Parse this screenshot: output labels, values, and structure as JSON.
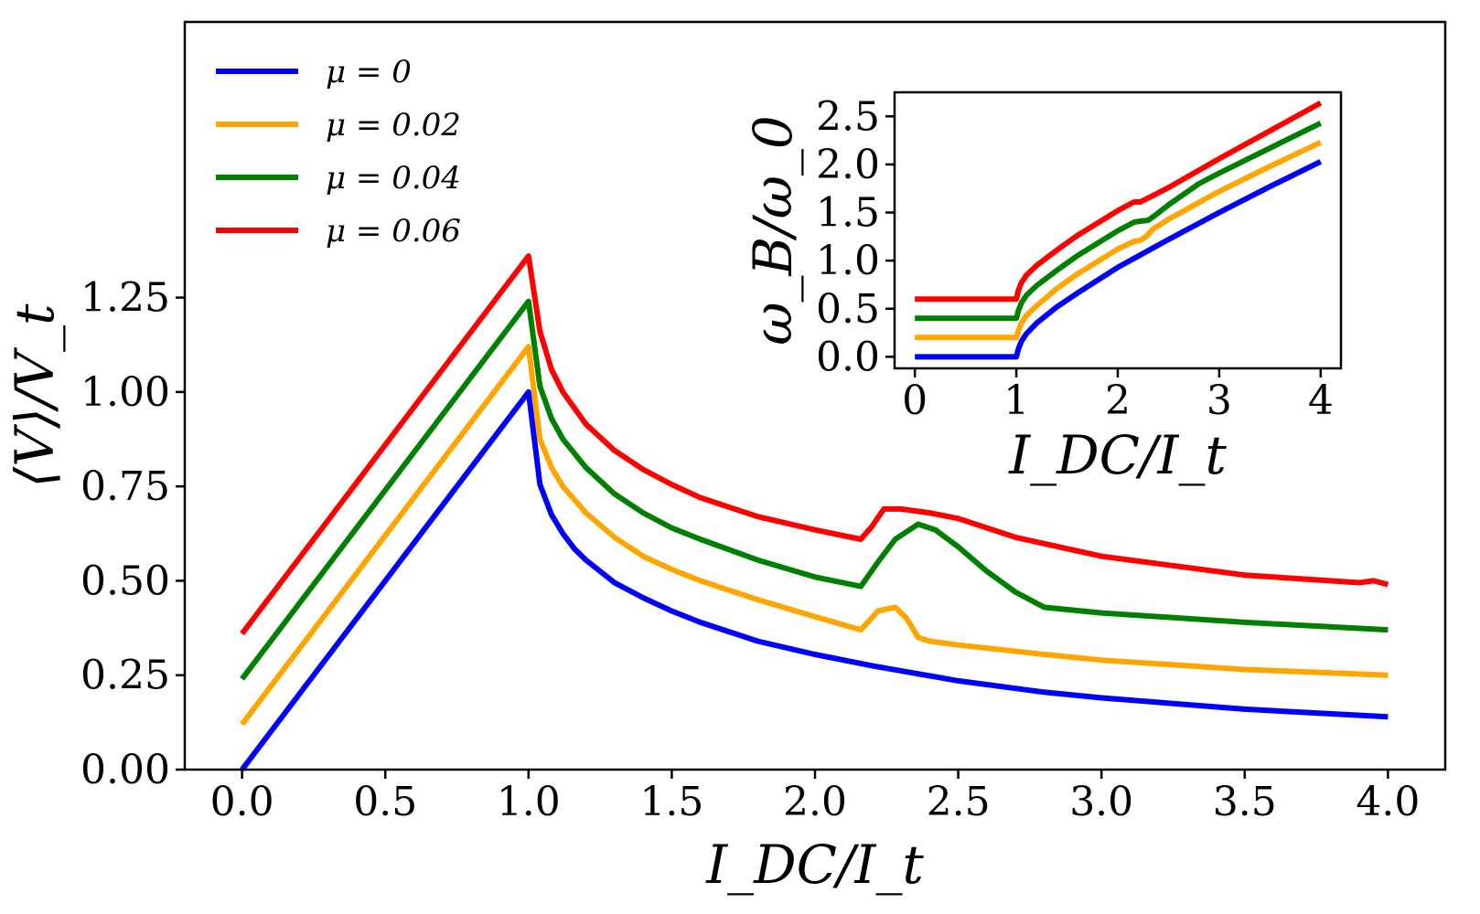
{
  "chart_data": [
    {
      "type": "line",
      "role": "main",
      "xlabel": "I_DC/I_t",
      "ylabel": "⟨V⟩/V_t",
      "xlim": [
        -0.2,
        4.2
      ],
      "ylim": [
        0.0,
        1.98
      ],
      "xticks": [
        0.0,
        0.5,
        1.0,
        1.5,
        2.0,
        2.5,
        3.0,
        3.5,
        4.0
      ],
      "xtick_labels": [
        "0.0",
        "0.5",
        "1.0",
        "1.5",
        "2.0",
        "2.5",
        "3.0",
        "3.5",
        "4.0"
      ],
      "yticks": [
        0.0,
        0.25,
        0.5,
        0.75,
        1.0,
        1.25
      ],
      "ytick_labels": [
        "0.00",
        "0.25",
        "0.50",
        "0.75",
        "1.00",
        "1.25"
      ],
      "legend_position": "top-left",
      "series": [
        {
          "name": "μ = 0",
          "color": "#0000ff",
          "x": [
            0.0,
            1.0,
            1.04,
            1.08,
            1.12,
            1.16,
            1.2,
            1.3,
            1.4,
            1.5,
            1.6,
            1.8,
            2.0,
            2.2,
            2.5,
            2.8,
            3.0,
            3.5,
            4.0
          ],
          "y": [
            0.0,
            1.0,
            0.755,
            0.675,
            0.625,
            0.585,
            0.555,
            0.495,
            0.455,
            0.42,
            0.39,
            0.34,
            0.305,
            0.275,
            0.235,
            0.205,
            0.19,
            0.16,
            0.14
          ]
        },
        {
          "name": "μ = 0.02",
          "color": "#ffa500",
          "x": [
            0.0,
            1.0,
            1.04,
            1.08,
            1.12,
            1.2,
            1.3,
            1.4,
            1.5,
            1.6,
            1.8,
            2.0,
            2.16,
            2.22,
            2.28,
            2.32,
            2.36,
            2.4,
            2.5,
            2.8,
            3.0,
            3.5,
            4.0
          ],
          "y": [
            0.12,
            1.12,
            0.875,
            0.8,
            0.75,
            0.68,
            0.615,
            0.565,
            0.53,
            0.5,
            0.45,
            0.405,
            0.37,
            0.42,
            0.43,
            0.4,
            0.35,
            0.34,
            0.33,
            0.305,
            0.29,
            0.265,
            0.25
          ]
        },
        {
          "name": "μ = 0.04",
          "color": "#008000",
          "x": [
            0.0,
            1.0,
            1.04,
            1.08,
            1.12,
            1.2,
            1.3,
            1.4,
            1.5,
            1.6,
            1.8,
            2.0,
            2.16,
            2.22,
            2.28,
            2.36,
            2.42,
            2.5,
            2.6,
            2.7,
            2.8,
            3.0,
            3.5,
            4.0
          ],
          "y": [
            0.24,
            1.24,
            1.015,
            0.93,
            0.875,
            0.8,
            0.73,
            0.68,
            0.64,
            0.61,
            0.555,
            0.51,
            0.485,
            0.55,
            0.61,
            0.65,
            0.635,
            0.59,
            0.525,
            0.47,
            0.43,
            0.415,
            0.39,
            0.37
          ]
        },
        {
          "name": "μ = 0.06",
          "color": "#ff0000",
          "x": [
            0.0,
            1.0,
            1.04,
            1.08,
            1.12,
            1.2,
            1.3,
            1.4,
            1.5,
            1.6,
            1.8,
            2.0,
            2.16,
            2.2,
            2.24,
            2.3,
            2.4,
            2.5,
            2.7,
            3.0,
            3.5,
            3.9,
            3.95,
            4.0
          ],
          "y": [
            0.36,
            1.36,
            1.16,
            1.06,
            1.0,
            0.915,
            0.845,
            0.795,
            0.755,
            0.72,
            0.67,
            0.635,
            0.61,
            0.645,
            0.69,
            0.69,
            0.68,
            0.665,
            0.615,
            0.565,
            0.515,
            0.495,
            0.5,
            0.49
          ]
        }
      ]
    },
    {
      "type": "line",
      "role": "inset",
      "xlabel": "I_DC/I_t",
      "ylabel": "ω_B/ω_0",
      "xlim": [
        -0.2,
        4.2
      ],
      "ylim": [
        -0.12,
        2.75
      ],
      "xticks": [
        0,
        1,
        2,
        3,
        4
      ],
      "xtick_labels": [
        "0",
        "1",
        "2",
        "3",
        "4"
      ],
      "yticks": [
        0.0,
        0.5,
        1.0,
        1.5,
        2.0,
        2.5
      ],
      "ytick_labels": [
        "0.0",
        "0.5",
        "1.0",
        "1.5",
        "2.0",
        "2.5"
      ],
      "series": [
        {
          "name": "μ = 0",
          "color": "#0000ff",
          "x": [
            0.0,
            1.0,
            1.02,
            1.05,
            1.1,
            1.2,
            1.4,
            1.6,
            2.0,
            2.5,
            3.0,
            3.5,
            4.0
          ],
          "y": [
            0.0,
            0.0,
            0.08,
            0.16,
            0.24,
            0.35,
            0.52,
            0.66,
            0.93,
            1.22,
            1.5,
            1.77,
            2.03
          ]
        },
        {
          "name": "μ = 0.02",
          "color": "#ffa500",
          "x": [
            0.0,
            1.0,
            1.02,
            1.05,
            1.1,
            1.2,
            1.4,
            1.6,
            2.0,
            2.16,
            2.22,
            2.28,
            2.35,
            2.5,
            3.0,
            3.5,
            4.0
          ],
          "y": [
            0.2,
            0.2,
            0.27,
            0.35,
            0.43,
            0.53,
            0.71,
            0.86,
            1.12,
            1.2,
            1.21,
            1.25,
            1.33,
            1.43,
            1.72,
            1.98,
            2.23
          ]
        },
        {
          "name": "μ = 0.04",
          "color": "#008000",
          "x": [
            0.0,
            1.0,
            1.02,
            1.05,
            1.1,
            1.2,
            1.4,
            1.6,
            2.0,
            2.16,
            2.22,
            2.3,
            2.38,
            2.5,
            2.8,
            3.0,
            3.5,
            4.0
          ],
          "y": [
            0.4,
            0.4,
            0.48,
            0.56,
            0.64,
            0.74,
            0.9,
            1.05,
            1.31,
            1.4,
            1.41,
            1.42,
            1.48,
            1.58,
            1.8,
            1.91,
            2.17,
            2.43
          ]
        },
        {
          "name": "μ = 0.06",
          "color": "#ff0000",
          "x": [
            0.0,
            1.0,
            1.02,
            1.05,
            1.1,
            1.2,
            1.4,
            1.6,
            2.0,
            2.16,
            2.22,
            2.3,
            2.5,
            3.0,
            3.5,
            4.0
          ],
          "y": [
            0.6,
            0.6,
            0.69,
            0.77,
            0.85,
            0.95,
            1.11,
            1.26,
            1.52,
            1.61,
            1.61,
            1.65,
            1.76,
            2.06,
            2.35,
            2.64
          ]
        }
      ]
    }
  ]
}
